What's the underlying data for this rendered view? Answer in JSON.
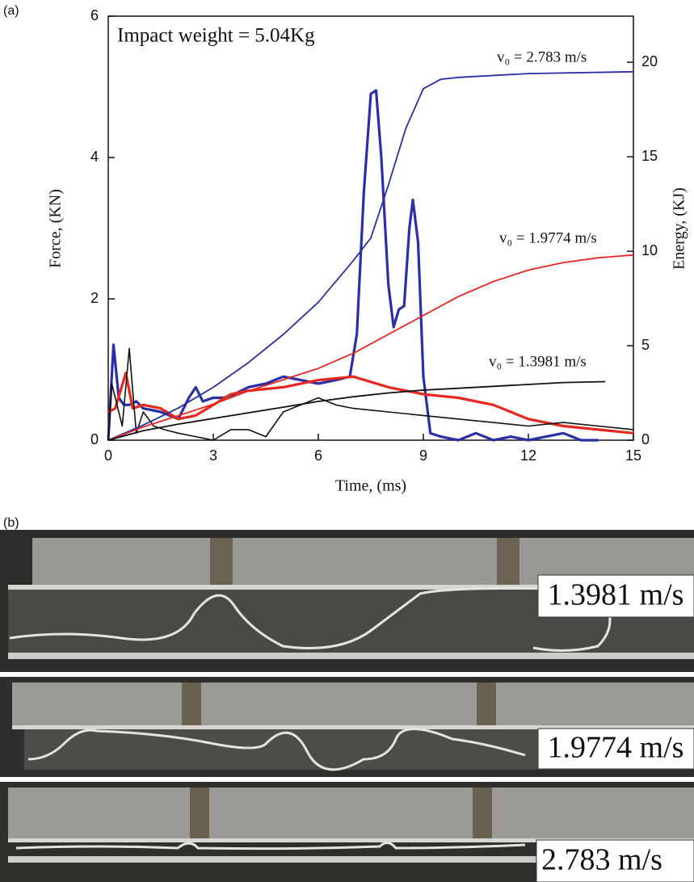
{
  "panel_labels": [
    "(a)",
    "(b)"
  ],
  "chart_data": {
    "type": "line",
    "xlabel": "Time, (ms)",
    "ylabel": "Force, (KN)",
    "y2label": "Energy, (KJ)",
    "annotations": [
      "Impact weight = 5.04Kg",
      "v₀ = 2.783 m/s",
      "v₀ = 1.9774 m/s",
      "v₀ = 1.3981 m/s"
    ],
    "xlim": [
      0,
      15
    ],
    "xticks": [
      0,
      3,
      6,
      9,
      12,
      15
    ],
    "ylim": [
      0,
      6
    ],
    "yticks": [
      0,
      2,
      4,
      6
    ],
    "y2lim": [
      0,
      22.44
    ],
    "y2ticks": [
      0,
      5,
      10,
      15,
      20
    ],
    "series": [
      {
        "color": "#2a2fa6",
        "width": 3.2,
        "x": [
          0,
          0.15,
          0.3,
          0.45,
          0.6,
          0.8,
          1,
          1.5,
          2,
          2.3,
          2.5,
          2.7,
          3,
          3.3,
          3.6,
          4,
          4.5,
          5,
          5.5,
          6,
          6.5,
          6.9,
          7.1,
          7.3,
          7.5,
          7.65,
          7.8,
          8,
          8.15,
          8.3,
          8.45,
          8.6,
          8.7,
          8.85,
          9,
          9.2,
          9.5,
          10,
          10.5,
          11,
          11.5,
          12,
          12.5,
          13,
          13.5,
          14
        ],
        "values": [
          0,
          1.35,
          0.6,
          0.5,
          0.5,
          0.55,
          0.45,
          0.4,
          0.3,
          0.6,
          0.75,
          0.55,
          0.6,
          0.6,
          0.65,
          0.75,
          0.8,
          0.9,
          0.85,
          0.8,
          0.85,
          0.9,
          1.5,
          3.5,
          4.9,
          4.95,
          4.0,
          2.2,
          1.6,
          1.85,
          1.9,
          3.0,
          3.4,
          2.8,
          0.9,
          0.1,
          0.05,
          0,
          0.1,
          0,
          0.05,
          0,
          0.05,
          0.1,
          0,
          0
        ]
      },
      {
        "color": "#e8281e",
        "width": 3.2,
        "x": [
          0,
          0.2,
          0.5,
          0.7,
          1,
          1.5,
          2,
          2.5,
          3,
          3.5,
          4,
          5,
          6,
          7,
          8,
          9,
          10,
          11,
          12,
          13,
          14,
          15
        ],
        "values": [
          0.4,
          0.45,
          0.95,
          0.45,
          0.5,
          0.45,
          0.3,
          0.35,
          0.5,
          0.65,
          0.7,
          0.75,
          0.85,
          0.9,
          0.75,
          0.65,
          0.6,
          0.5,
          0.3,
          0.2,
          0.15,
          0.1
        ]
      },
      {
        "color": "#111111",
        "width": 1.6,
        "x": [
          0,
          0.1,
          0.2,
          0.4,
          0.6,
          0.7,
          0.8,
          1,
          1.3,
          1.6,
          2,
          2.5,
          3,
          3.5,
          4,
          4.5,
          5,
          5.5,
          6,
          6.5,
          7,
          8,
          9,
          10,
          11,
          12,
          13,
          14,
          15
        ],
        "values": [
          0,
          0.8,
          0.6,
          0.2,
          1.3,
          0.7,
          0.1,
          0.4,
          0.2,
          0.15,
          0.1,
          0.05,
          0,
          0.15,
          0.15,
          0.05,
          0.4,
          0.5,
          0.6,
          0.5,
          0.45,
          0.4,
          0.35,
          0.3,
          0.25,
          0.2,
          0.25,
          0.2,
          0.15
        ]
      },
      {
        "color": "#2a2fa6",
        "width": 1.8,
        "axis": "y2",
        "x": [
          0,
          1,
          2,
          3,
          4,
          5,
          6,
          7,
          7.5,
          8,
          8.5,
          9,
          9.5,
          10,
          12,
          15
        ],
        "values": [
          0,
          0.8,
          1.7,
          2.8,
          4.1,
          5.6,
          7.3,
          9.5,
          10.7,
          13.5,
          16.5,
          18.6,
          19.1,
          19.2,
          19.4,
          19.5
        ]
      },
      {
        "color": "#e8281e",
        "width": 1.8,
        "axis": "y2",
        "x": [
          0,
          1,
          2,
          3,
          4,
          5,
          6,
          7,
          8,
          9,
          10,
          11,
          12,
          13,
          14,
          15
        ],
        "values": [
          0,
          0.7,
          1.3,
          1.9,
          2.6,
          3.2,
          3.8,
          4.6,
          5.6,
          6.6,
          7.6,
          8.4,
          9.0,
          9.4,
          9.65,
          9.8
        ]
      },
      {
        "color": "#111111",
        "width": 1.8,
        "axis": "y2",
        "x": [
          0,
          1,
          2,
          3,
          4,
          5,
          6,
          7,
          8,
          9,
          10,
          11,
          12,
          13,
          14.2
        ],
        "values": [
          0,
          0.5,
          0.85,
          1.15,
          1.45,
          1.75,
          2.05,
          2.3,
          2.5,
          2.65,
          2.75,
          2.85,
          2.95,
          3.05,
          3.1
        ]
      }
    ]
  },
  "photos": [
    {
      "label": "1.3981 m/s"
    },
    {
      "label": "1.9774 m/s"
    },
    {
      "label": "2.783 m/s"
    }
  ]
}
